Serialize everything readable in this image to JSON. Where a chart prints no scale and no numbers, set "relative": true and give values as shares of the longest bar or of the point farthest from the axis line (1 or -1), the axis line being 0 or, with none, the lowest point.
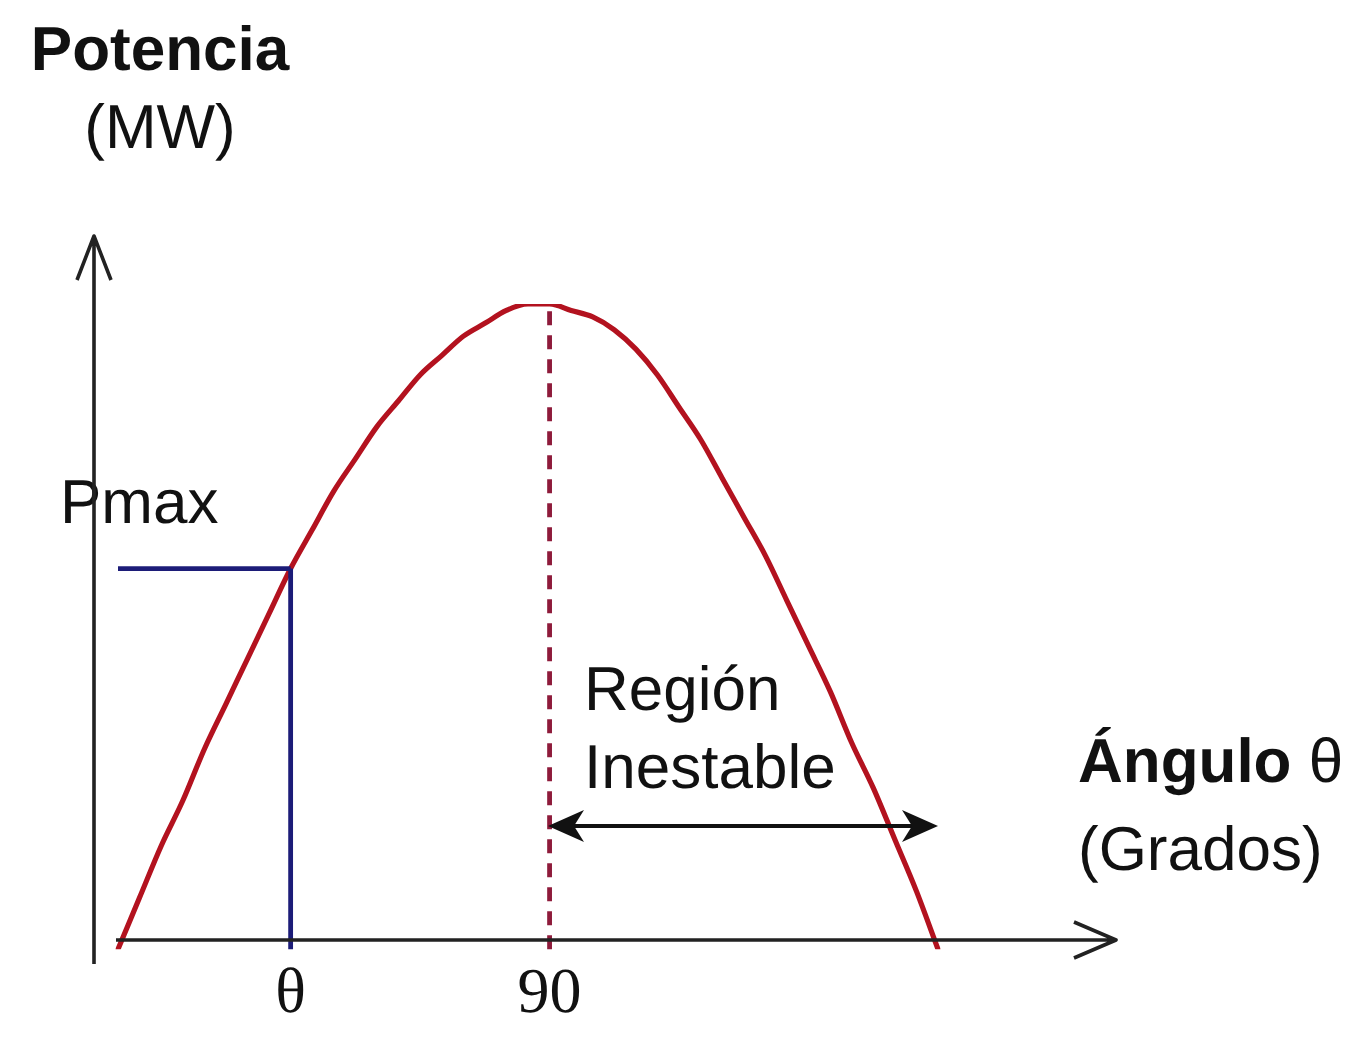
{
  "chart_data": {
    "type": "line",
    "relative": true,
    "ylabel": "Potencia (MW)",
    "xlabel": "Ángulo θ (Grados)",
    "categories": [
      null,
      null,
      null,
      null,
      null,
      null,
      null,
      null,
      "θ",
      null,
      null,
      null,
      null,
      null,
      null,
      null,
      null,
      null,
      null,
      null,
      "90",
      null,
      null,
      null,
      null,
      null,
      null,
      null,
      null,
      null,
      null,
      null,
      null,
      null,
      null,
      null,
      null,
      null,
      null
    ],
    "series": [
      {
        "color": "#b3121f",
        "values": [
          0,
          0.08,
          0.16,
          0.23,
          0.31,
          0.38,
          0.45,
          0.52,
          0.59,
          0.65,
          0.71,
          0.76,
          0.81,
          0.85,
          0.89,
          0.92,
          0.95,
          0.97,
          0.99,
          1,
          1,
          0.99,
          0.98,
          0.96,
          0.93,
          0.89,
          0.84,
          0.79,
          0.73,
          0.67,
          0.61,
          0.54,
          0.47,
          0.4,
          0.32,
          0.25,
          0.17,
          0.09,
          0
        ]
      }
    ],
    "marker": "none",
    "ref_lines": [
      {
        "axis": "x",
        "value": "θ",
        "color": "#1c1c78"
      },
      {
        "axis": "y",
        "value": 0.59,
        "label": "Pmax",
        "color": "#1c1c78"
      },
      {
        "axis": "x",
        "value": "90",
        "color": "#8e1b3b",
        "line_style": "dashed"
      }
    ],
    "annotations": [
      "Región Inestable"
    ]
  }
}
